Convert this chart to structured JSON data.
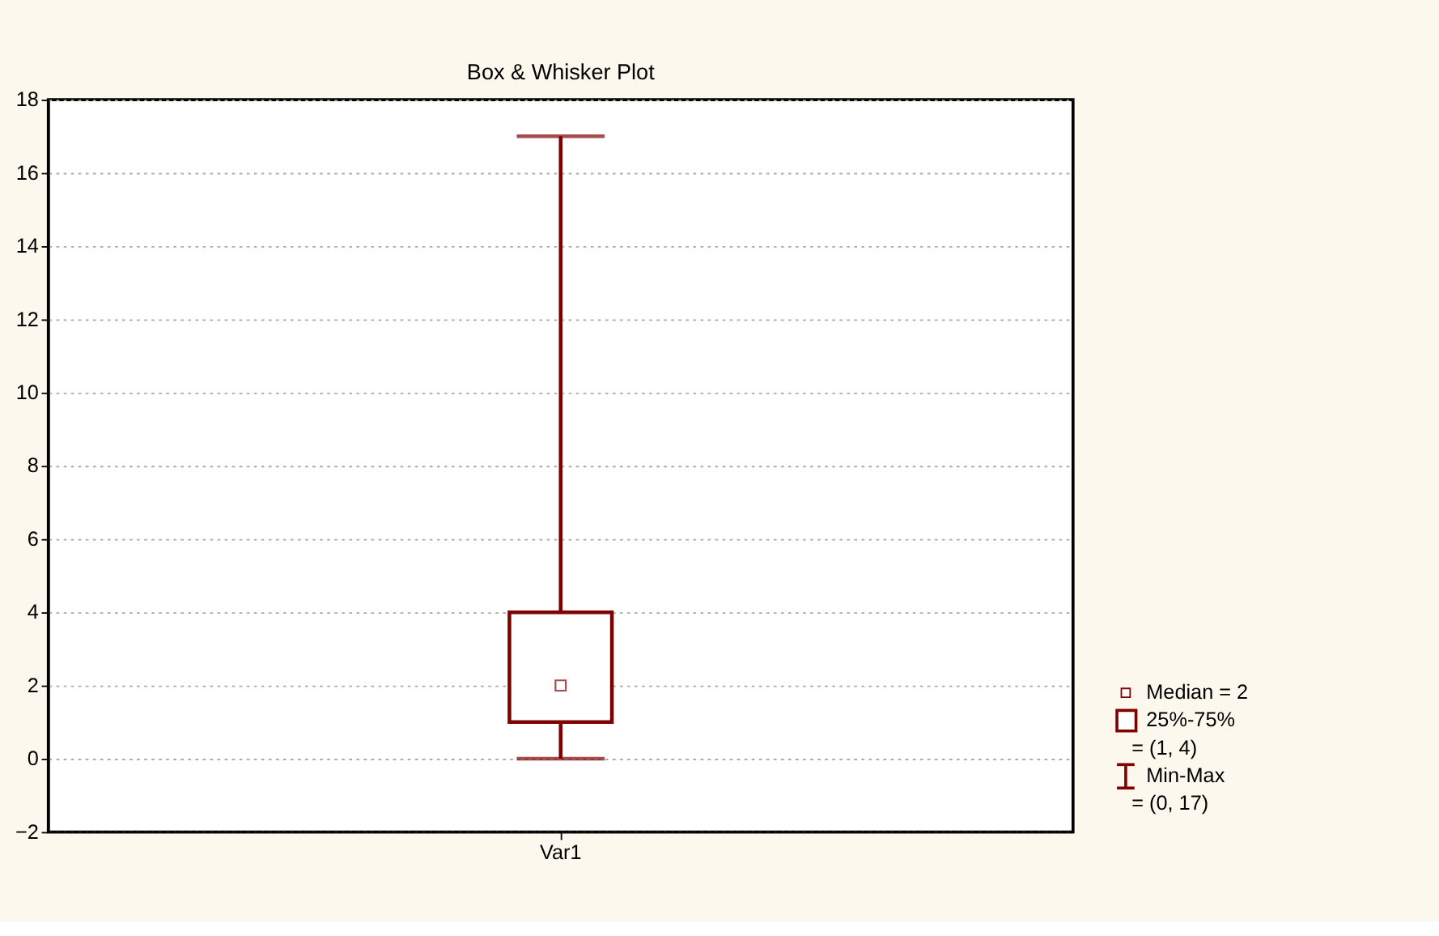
{
  "chart_data": {
    "type": "box",
    "title": "Box & Whisker Plot",
    "categories": [
      "Var1"
    ],
    "series": [
      {
        "color": "#800000",
        "boxes": [
          {
            "low": 0,
            "q1": 1,
            "median": 2,
            "q3": 4,
            "high": 17
          }
        ]
      }
    ],
    "ylim": [
      -2,
      18
    ],
    "yticks": [
      -2,
      0,
      2,
      4,
      6,
      8,
      10,
      12,
      14,
      16,
      18
    ],
    "grid": "y",
    "annotations": [
      "Median = 2",
      "25%-75%",
      "= (1, 4)",
      "Min-Max",
      "= (0, 17)"
    ]
  }
}
